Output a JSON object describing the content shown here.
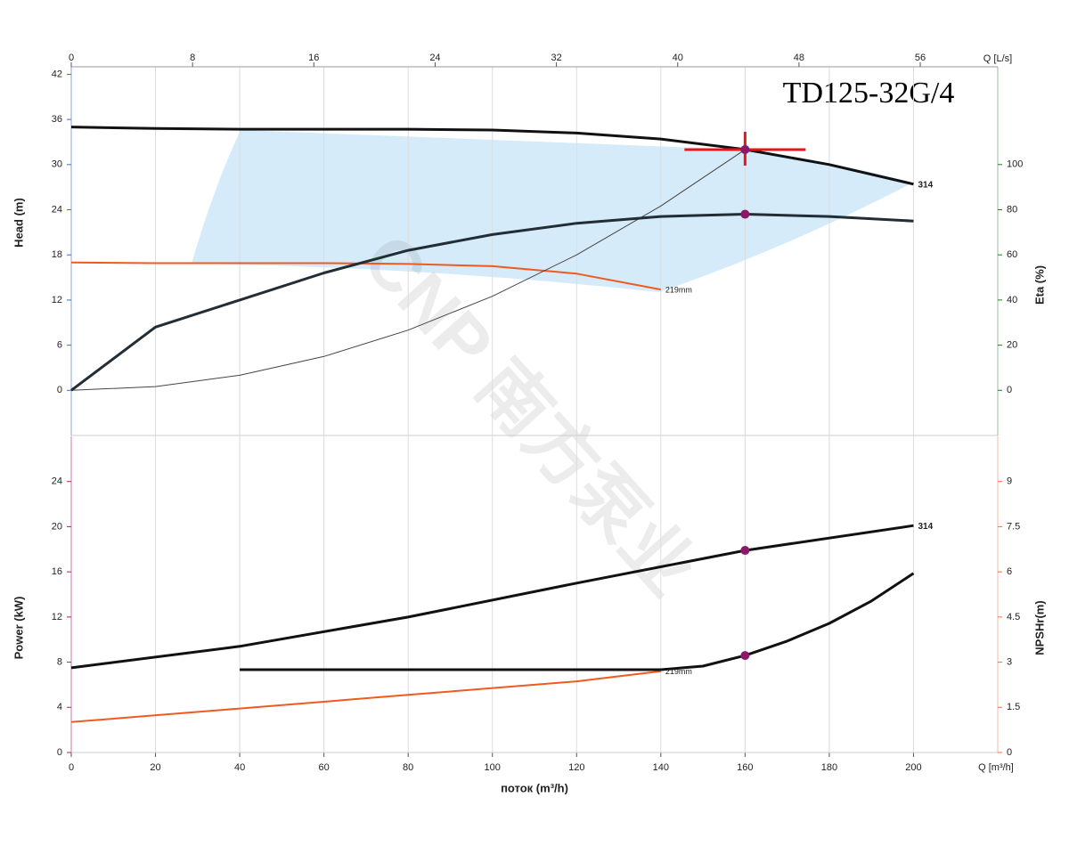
{
  "chart_data": [
    {
      "type": "line",
      "title": "TD125-32G/4",
      "watermark": "CNP 南方泵业",
      "ylabel": "Head (m)",
      "y2label": "Eta (%)",
      "x2label": "Q [L/s]",
      "ycolor": "#3a6fd8",
      "y2color": "#2a7a2a",
      "xlim": [
        0,
        220
      ],
      "xticks": [
        0,
        20,
        40,
        60,
        80,
        100,
        120,
        140,
        160,
        180,
        200
      ],
      "x2lim": [
        0,
        61.11
      ],
      "x2ticks": [
        0,
        8,
        16,
        24,
        32,
        40,
        48,
        56
      ],
      "ylim": [
        -6,
        43
      ],
      "yticks": [
        0,
        6,
        12,
        18,
        24,
        30,
        36,
        42
      ],
      "y2lim": [
        -20,
        143.3
      ],
      "y2ticks": [
        0,
        20,
        40,
        60,
        80,
        100
      ],
      "grid": true,
      "series": [
        {
          "end_label": "314",
          "color": "#111111",
          "line_width": 3,
          "x": [
            0,
            20,
            40,
            60,
            80,
            100,
            120,
            140,
            160,
            180,
            200
          ],
          "values": [
            35,
            34.8,
            34.7,
            34.7,
            34.7,
            34.6,
            34.2,
            33.4,
            32,
            30,
            27.4
          ]
        },
        {
          "end_label": "219mm",
          "color": "#f05a1e",
          "line_width": 2,
          "x": [
            0,
            20,
            40,
            60,
            80,
            100,
            120,
            140
          ],
          "values": [
            17,
            16.9,
            16.9,
            16.9,
            16.8,
            16.5,
            15.5,
            13.4
          ]
        },
        {
          "color": "#444444",
          "line_width": 1,
          "x": [
            0,
            20,
            40,
            60,
            80,
            100,
            120,
            140,
            160
          ],
          "values": [
            0,
            0.5,
            2,
            4.5,
            8,
            12.5,
            18,
            24.5,
            32
          ]
        },
        {
          "color": "#222d36",
          "line_width": 3,
          "axis": "y2",
          "x": [
            0,
            20,
            40,
            60,
            80,
            100,
            120,
            140,
            160,
            180,
            200
          ],
          "values": [
            0,
            28,
            40,
            52,
            62,
            69,
            74,
            77,
            78,
            77,
            75
          ]
        }
      ],
      "duty_point": {
        "x": 160,
        "y": 32
      },
      "points": [
        {
          "x": 160,
          "y": 78,
          "axis": "y2"
        }
      ]
    },
    {
      "type": "line",
      "xlabel": "поток (m³/h)",
      "xunit_label": "Q [m³/h]",
      "ylabel": "Power (kW)",
      "y2label": "NPSHr(m)",
      "ycolor": "#c0196b",
      "y2color": "#f07050",
      "xlim": [
        0,
        220
      ],
      "xticks": [
        0,
        20,
        40,
        60,
        80,
        100,
        120,
        140,
        160,
        180,
        200
      ],
      "ylim": [
        0,
        28
      ],
      "yticks": [
        0,
        4,
        8,
        12,
        16,
        20,
        24
      ],
      "y2lim": [
        0,
        10.5
      ],
      "y2ticks": [
        0,
        1.5,
        3,
        4.5,
        6,
        7.5,
        9
      ],
      "grid": true,
      "series": [
        {
          "end_label": "314",
          "color": "#111111",
          "line_width": 3,
          "x": [
            0,
            40,
            80,
            120,
            160,
            200
          ],
          "values": [
            7.5,
            9.4,
            12,
            15,
            17.9,
            20.1
          ]
        },
        {
          "end_label": "219mm",
          "color": "#f05a1e",
          "line_width": 2,
          "x": [
            0,
            40,
            80,
            120,
            140
          ],
          "values": [
            2.7,
            3.9,
            5.1,
            6.3,
            7.2
          ]
        },
        {
          "color": "#111111",
          "line_width": 3,
          "axis": "y2",
          "x": [
            40,
            80,
            120,
            140,
            150,
            160,
            170,
            180,
            190,
            200
          ],
          "values": [
            2.75,
            2.75,
            2.75,
            2.75,
            2.87,
            3.22,
            3.7,
            4.29,
            5.03,
            5.95
          ]
        }
      ],
      "points": [
        {
          "x": 160,
          "y": 17.9
        },
        {
          "x": 160,
          "y": 3.22,
          "axis": "y2"
        }
      ]
    }
  ]
}
